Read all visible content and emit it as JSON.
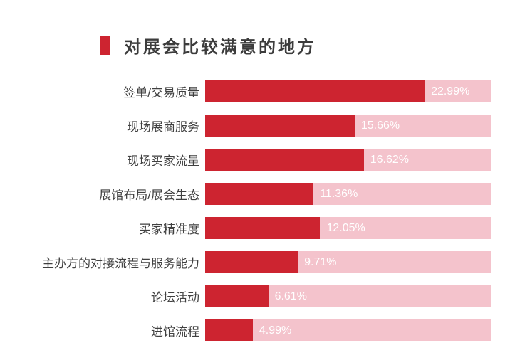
{
  "chart_data": {
    "type": "bar",
    "orientation": "horizontal",
    "title": "对展会比较满意的地方",
    "categories": [
      "签单/交易质量",
      "现场展商服务",
      "现场买家流量",
      "展馆布局/展会生态",
      "买家精准度",
      "主办方的对接流程与服务能力",
      "论坛活动",
      "进馆流程"
    ],
    "values": [
      22.99,
      15.66,
      16.62,
      11.36,
      12.05,
      9.71,
      6.61,
      4.99
    ],
    "value_labels": [
      "22.99%",
      "15.66%",
      "16.62%",
      "11.36%",
      "12.05%",
      "9.71%",
      "6.61%",
      "4.99%"
    ],
    "xlabel": "",
    "ylabel": "",
    "xlim": [
      0,
      30
    ],
    "grid": false,
    "legend": "none",
    "colors": {
      "bar": "#cd2430",
      "track": "#f4c3cc",
      "title_text": "#3c3c3c",
      "category_text": "#404040",
      "value_text": "#ffffff"
    }
  }
}
